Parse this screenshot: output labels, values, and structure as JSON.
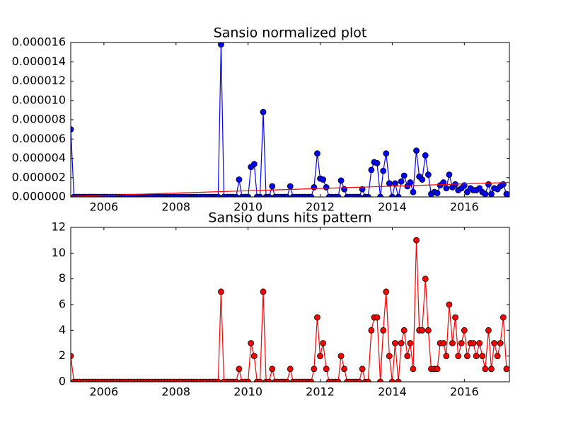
{
  "chart_data": [
    {
      "type": "line",
      "title": "Sansio normalized plot",
      "x": [
        2005.08,
        2005.17,
        2005.25,
        2005.33,
        2005.42,
        2005.5,
        2005.58,
        2005.67,
        2005.75,
        2005.83,
        2005.92,
        2006,
        2006.08,
        2006.17,
        2006.25,
        2006.33,
        2006.42,
        2006.5,
        2006.58,
        2006.67,
        2006.75,
        2006.83,
        2006.92,
        2007,
        2007.08,
        2007.17,
        2007.25,
        2007.33,
        2007.42,
        2007.5,
        2007.58,
        2007.67,
        2007.75,
        2007.83,
        2007.92,
        2008,
        2008.08,
        2008.17,
        2008.25,
        2008.33,
        2008.42,
        2008.5,
        2008.58,
        2008.67,
        2008.75,
        2008.83,
        2008.92,
        2009,
        2009.08,
        2009.17,
        2009.25,
        2009.33,
        2009.42,
        2009.5,
        2009.58,
        2009.67,
        2009.75,
        2009.83,
        2009.92,
        2010,
        2010.08,
        2010.17,
        2010.25,
        2010.33,
        2010.42,
        2010.5,
        2010.58,
        2010.67,
        2010.75,
        2010.83,
        2010.92,
        2011,
        2011.08,
        2011.17,
        2011.25,
        2011.33,
        2011.42,
        2011.5,
        2011.58,
        2011.67,
        2011.75,
        2011.83,
        2011.92,
        2012,
        2012.08,
        2012.17,
        2012.25,
        2012.33,
        2012.42,
        2012.5,
        2012.58,
        2012.67,
        2012.75,
        2012.83,
        2012.92,
        2013,
        2013.08,
        2013.17,
        2013.25,
        2013.33,
        2013.42,
        2013.5,
        2013.58,
        2013.67,
        2013.75,
        2013.83,
        2013.92,
        2014,
        2014.08,
        2014.17,
        2014.25,
        2014.33,
        2014.42,
        2014.5,
        2014.58,
        2014.67,
        2014.75,
        2014.83,
        2014.92,
        2015,
        2015.08,
        2015.17,
        2015.25,
        2015.33,
        2015.42,
        2015.5,
        2015.58,
        2015.67,
        2015.75,
        2015.83,
        2015.92,
        2016,
        2016.08,
        2016.17,
        2016.25,
        2016.33,
        2016.42,
        2016.5,
        2016.58,
        2016.67,
        2016.75,
        2016.83,
        2016.92,
        2017,
        2017.08,
        2017.17
      ],
      "series": [
        {
          "color": "#0000ff",
          "marker": true,
          "values": [
            7e-06,
            0,
            0,
            0,
            0,
            0,
            0,
            0,
            0,
            0,
            0,
            0,
            0,
            0,
            0,
            0,
            0,
            0,
            0,
            0,
            0,
            0,
            0,
            0,
            0,
            0,
            0,
            0,
            0,
            0,
            0,
            0,
            0,
            0,
            0,
            0,
            0,
            0,
            0,
            0,
            0,
            0,
            0,
            0,
            0,
            0,
            0,
            0,
            0,
            0,
            1.58e-05,
            0,
            0,
            0,
            0,
            0,
            1.8e-06,
            0,
            0,
            0,
            3.1e-06,
            3.4e-06,
            0,
            0,
            8.8e-06,
            0,
            0,
            1.1e-06,
            0,
            0,
            0,
            0,
            0,
            1.1e-06,
            0,
            0,
            0,
            0,
            0,
            0,
            0,
            1e-06,
            4.5e-06,
            1.9e-06,
            1.8e-06,
            1e-06,
            0,
            0,
            0,
            0,
            1.7e-06,
            8e-07,
            0,
            0,
            0,
            0,
            0,
            8e-07,
            0,
            0,
            2.8e-06,
            3.6e-06,
            3.5e-06,
            0,
            2.7e-06,
            4.5e-06,
            1.4e-06,
            0,
            1.4e-06,
            0,
            1.6e-06,
            2.2e-06,
            1.1e-06,
            1.5e-06,
            5e-07,
            4.8e-06,
            2.1e-06,
            1.8e-06,
            4.3e-06,
            2.3e-06,
            3e-07,
            5e-07,
            4e-07,
            1.2e-06,
            1.5e-06,
            9e-07,
            2.3e-06,
            1e-06,
            1.3e-06,
            7e-07,
            9e-07,
            1.2e-06,
            5e-07,
            9e-07,
            7e-07,
            7e-07,
            9e-07,
            5e-07,
            3e-07,
            1.3e-06,
            3e-07,
            9e-07,
            8e-07,
            1.1e-06,
            1.3e-06,
            3e-07
          ]
        },
        {
          "color": "#ff0000",
          "marker": false,
          "x": [
            2005.08,
            2017.25
          ],
          "values": [
            5e-08,
            1.5e-06
          ]
        }
      ],
      "xlim": [
        2005.08,
        2017.25
      ],
      "ylim": [
        0,
        1.6e-05
      ],
      "xticks": [
        2006,
        2008,
        2010,
        2012,
        2014,
        2016
      ],
      "yticks": [
        {
          "value": 0,
          "label": "0.000000"
        },
        {
          "value": 2e-06,
          "label": "0.000002"
        },
        {
          "value": 4e-06,
          "label": "0.000004"
        },
        {
          "value": 6e-06,
          "label": "0.000006"
        },
        {
          "value": 8e-06,
          "label": "0.000008"
        },
        {
          "value": 1e-05,
          "label": "0.000010"
        },
        {
          "value": 1.2e-05,
          "label": "0.000012"
        },
        {
          "value": 1.4e-05,
          "label": "0.000014"
        },
        {
          "value": 1.6e-05,
          "label": "0.000016"
        }
      ]
    },
    {
      "type": "line",
      "title": "Sansio duns hits pattern",
      "x": [
        2005.08,
        2005.17,
        2005.25,
        2005.33,
        2005.42,
        2005.5,
        2005.58,
        2005.67,
        2005.75,
        2005.83,
        2005.92,
        2006,
        2006.08,
        2006.17,
        2006.25,
        2006.33,
        2006.42,
        2006.5,
        2006.58,
        2006.67,
        2006.75,
        2006.83,
        2006.92,
        2007,
        2007.08,
        2007.17,
        2007.25,
        2007.33,
        2007.42,
        2007.5,
        2007.58,
        2007.67,
        2007.75,
        2007.83,
        2007.92,
        2008,
        2008.08,
        2008.17,
        2008.25,
        2008.33,
        2008.42,
        2008.5,
        2008.58,
        2008.67,
        2008.75,
        2008.83,
        2008.92,
        2009,
        2009.08,
        2009.17,
        2009.25,
        2009.33,
        2009.42,
        2009.5,
        2009.58,
        2009.67,
        2009.75,
        2009.83,
        2009.92,
        2010,
        2010.08,
        2010.17,
        2010.25,
        2010.33,
        2010.42,
        2010.5,
        2010.58,
        2010.67,
        2010.75,
        2010.83,
        2010.92,
        2011,
        2011.08,
        2011.17,
        2011.25,
        2011.33,
        2011.42,
        2011.5,
        2011.58,
        2011.67,
        2011.75,
        2011.83,
        2011.92,
        2012,
        2012.08,
        2012.17,
        2012.25,
        2012.33,
        2012.42,
        2012.5,
        2012.58,
        2012.67,
        2012.75,
        2012.83,
        2012.92,
        2013,
        2013.08,
        2013.17,
        2013.25,
        2013.33,
        2013.42,
        2013.5,
        2013.58,
        2013.67,
        2013.75,
        2013.83,
        2013.92,
        2014,
        2014.08,
        2014.17,
        2014.25,
        2014.33,
        2014.42,
        2014.5,
        2014.58,
        2014.67,
        2014.75,
        2014.83,
        2014.92,
        2015,
        2015.08,
        2015.17,
        2015.25,
        2015.33,
        2015.42,
        2015.5,
        2015.58,
        2015.67,
        2015.75,
        2015.83,
        2015.92,
        2016,
        2016.08,
        2016.17,
        2016.25,
        2016.33,
        2016.42,
        2016.5,
        2016.58,
        2016.67,
        2016.75,
        2016.83,
        2016.92,
        2017,
        2017.08,
        2017.17
      ],
      "series": [
        {
          "color": "#ff0000",
          "marker": true,
          "values": [
            2,
            0,
            0,
            0,
            0,
            0,
            0,
            0,
            0,
            0,
            0,
            0,
            0,
            0,
            0,
            0,
            0,
            0,
            0,
            0,
            0,
            0,
            0,
            0,
            0,
            0,
            0,
            0,
            0,
            0,
            0,
            0,
            0,
            0,
            0,
            0,
            0,
            0,
            0,
            0,
            0,
            0,
            0,
            0,
            0,
            0,
            0,
            0,
            0,
            0,
            7,
            0,
            0,
            0,
            0,
            0,
            1,
            0,
            0,
            0,
            3,
            2,
            0,
            0,
            7,
            0,
            0,
            1,
            0,
            0,
            0,
            0,
            0,
            1,
            0,
            0,
            0,
            0,
            0,
            0,
            0,
            1,
            5,
            2,
            3,
            1,
            0,
            0,
            0,
            0,
            2,
            1,
            0,
            0,
            0,
            0,
            0,
            1,
            0,
            0,
            4,
            5,
            5,
            0,
            4,
            7,
            2,
            0,
            3,
            0,
            3,
            4,
            2,
            3,
            1,
            11,
            4,
            4,
            8,
            4,
            1,
            1,
            1,
            3,
            3,
            2,
            6,
            3,
            5,
            2,
            3,
            4,
            2,
            3,
            3,
            2,
            3,
            2,
            1,
            4,
            1,
            3,
            2,
            3,
            5,
            1
          ]
        }
      ],
      "xlim": [
        2005.08,
        2017.25
      ],
      "ylim": [
        0,
        12
      ],
      "xticks": [
        2006,
        2008,
        2010,
        2012,
        2014,
        2016
      ],
      "yticks": [
        0,
        2,
        4,
        6,
        8,
        10,
        12
      ]
    }
  ]
}
